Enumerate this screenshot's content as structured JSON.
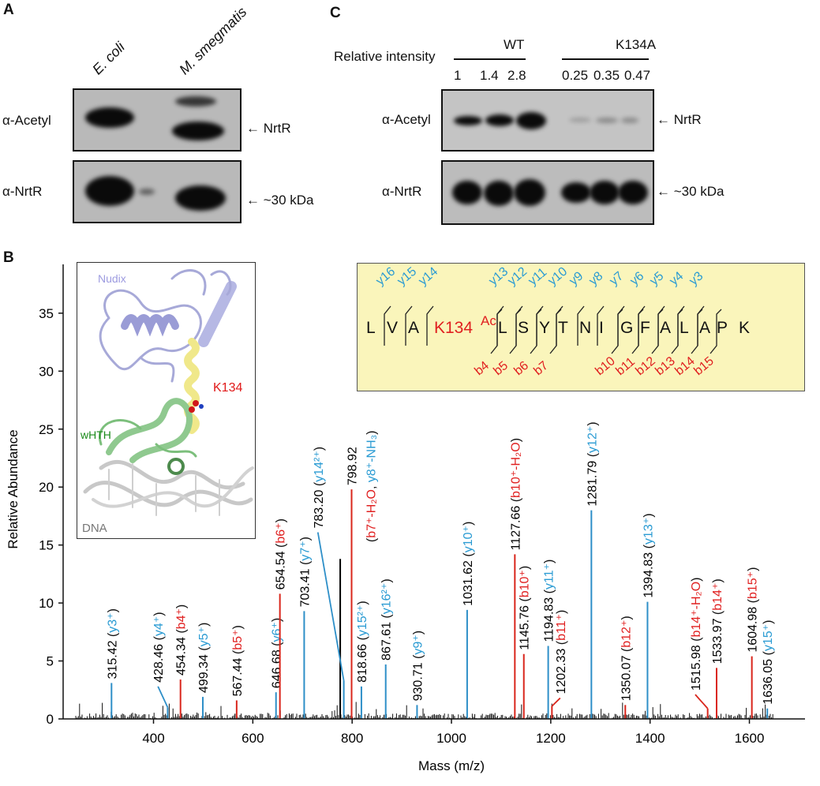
{
  "panel_a": {
    "letter": "A",
    "lanes": [
      "E. coli",
      "M. smegmatis"
    ],
    "row_labels": [
      "α-Acetyl",
      "α-NrtR"
    ],
    "arrows": [
      "← NrtR",
      "← ~30 kDa"
    ]
  },
  "panel_c": {
    "letter": "C",
    "intensity_label": "Relative intensity",
    "groups": [
      "WT",
      "K134A"
    ],
    "values": [
      "1",
      "1.4",
      "2.8",
      "0.25",
      "0.35",
      "0.47"
    ],
    "row_labels": [
      "α-Acetyl",
      "α-NrtR"
    ],
    "arrows": [
      "← NrtR",
      "← ~30 kDa"
    ]
  },
  "panel_b": {
    "letter": "B",
    "structure_labels": {
      "nudix": "Nudix",
      "site": "K134",
      "whth": "wHTH",
      "dna": "DNA"
    },
    "peptide": {
      "residues": [
        "L",
        "V",
        "A",
        "K134",
        "L",
        "S",
        "Y",
        "T",
        "N",
        "I",
        "G",
        "F",
        "A",
        "L",
        "A",
        "P",
        "K"
      ],
      "modification": "Ac",
      "y_ions": [
        "y16",
        "y15",
        "y14",
        "y13",
        "y12",
        "y11",
        "y10",
        "y9",
        "y8",
        "y7",
        "y6",
        "y5",
        "y4",
        "y3"
      ],
      "b_ions": [
        "b4",
        "b5",
        "b6",
        "b7",
        "b10",
        "b11",
        "b12",
        "b13",
        "b14",
        "b15"
      ]
    }
  },
  "colors": {
    "y_ion": "#2a9bd3",
    "b_ion": "#e02020",
    "other": "#000000",
    "y_peak": "#2e8fc8",
    "b_peak": "#d9261c"
  },
  "chart_data": {
    "type": "bar",
    "title": "",
    "xlabel": "Mass (m/z)",
    "ylabel": "Relative Abundance",
    "xlim": [
      218,
      1712
    ],
    "ylim": [
      0,
      39
    ],
    "xticks": [
      400,
      600,
      800,
      1000,
      1200,
      1400,
      1600
    ],
    "yticks": [
      0,
      5,
      10,
      15,
      20,
      25,
      30,
      35
    ],
    "peaks": [
      {
        "mass": 315.42,
        "abundance": 3.1,
        "type": "y",
        "mz_label": "315.42",
        "ion": "y3⁺"
      },
      {
        "mass": 428.46,
        "abundance": 1.0,
        "type": "y",
        "mz_label": "428.46",
        "ion": "y4⁺",
        "label_mass": 409,
        "label_level": 2.8
      },
      {
        "mass": 454.34,
        "abundance": 3.4,
        "type": "b",
        "mz_label": "454.34",
        "ion": "b4⁺"
      },
      {
        "mass": 499.34,
        "abundance": 1.9,
        "type": "y",
        "mz_label": "499.34",
        "ion": "y5⁺"
      },
      {
        "mass": 567.44,
        "abundance": 1.6,
        "type": "b",
        "mz_label": "567.44",
        "ion": "b5⁺"
      },
      {
        "mass": 646.68,
        "abundance": 2.3,
        "type": "y",
        "mz_label": "646.68",
        "ion": "y6⁺"
      },
      {
        "mass": 654.54,
        "abundance": 10.8,
        "type": "b",
        "mz_label": "654.54",
        "ion": "b6⁺"
      },
      {
        "mass": 703.41,
        "abundance": 9.3,
        "type": "y",
        "mz_label": "703.41",
        "ion": "y7⁺"
      },
      {
        "mass": 776.0,
        "abundance": 13.8,
        "type": "other"
      },
      {
        "mass": 783.2,
        "abundance": 3.3,
        "type": "y",
        "mz_label": "783.20",
        "ion": "y14²⁺",
        "label_mass": 731,
        "label_level": 16.1
      },
      {
        "mass": 798.92,
        "abundance": 19.8,
        "type": "b",
        "mz_label": "798.92",
        "ion": "b7⁺-H₂O",
        "ion2": "y8⁺-NH₃",
        "two_line": true
      },
      {
        "mass": 818.66,
        "abundance": 2.8,
        "type": "y",
        "mz_label": "818.66",
        "ion": "y15²⁺"
      },
      {
        "mass": 867.61,
        "abundance": 4.7,
        "type": "y",
        "mz_label": "867.61",
        "ion": "y16²⁺"
      },
      {
        "mass": 930.71,
        "abundance": 1.2,
        "type": "y",
        "mz_label": "930.71",
        "ion": "y9⁺"
      },
      {
        "mass": 1031.62,
        "abundance": 9.4,
        "type": "y",
        "mz_label": "1031.62",
        "ion": "y10⁺"
      },
      {
        "mass": 1127.66,
        "abundance": 14.2,
        "type": "b",
        "mz_label": "1127.66",
        "ion": "b10⁺-H₂O"
      },
      {
        "mass": 1145.76,
        "abundance": 5.6,
        "type": "b",
        "mz_label": "1145.76",
        "ion": "b10⁺"
      },
      {
        "mass": 1194.83,
        "abundance": 6.3,
        "type": "y",
        "mz_label": "1194.83",
        "ion": "y11⁺"
      },
      {
        "mass": 1202.33,
        "abundance": 1.1,
        "type": "b",
        "mz_label": "1202.33",
        "ion": "b11⁺",
        "label_mass": 1219,
        "label_level": 1.8
      },
      {
        "mass": 1281.79,
        "abundance": 18.0,
        "type": "y",
        "mz_label": "1281.79",
        "ion": "y12⁺"
      },
      {
        "mass": 1350.07,
        "abundance": 1.2,
        "type": "b",
        "mz_label": "1350.07",
        "ion": "b12⁺"
      },
      {
        "mass": 1394.83,
        "abundance": 10.1,
        "type": "y",
        "mz_label": "1394.83",
        "ion": "y13⁺"
      },
      {
        "mass": 1515.98,
        "abundance": 0.9,
        "type": "b",
        "mz_label": "1515.98",
        "ion": "b14⁺-H₂O",
        "label_mass": 1491,
        "label_level": 2.1
      },
      {
        "mass": 1533.97,
        "abundance": 4.4,
        "type": "b",
        "mz_label": "1533.97",
        "ion": "b14⁺"
      },
      {
        "mass": 1604.98,
        "abundance": 5.4,
        "type": "b",
        "mz_label": "1604.98",
        "ion": "b15⁺"
      },
      {
        "mass": 1636.05,
        "abundance": 0.9,
        "type": "y",
        "mz_label": "1636.05",
        "ion": "y15⁺"
      }
    ]
  }
}
